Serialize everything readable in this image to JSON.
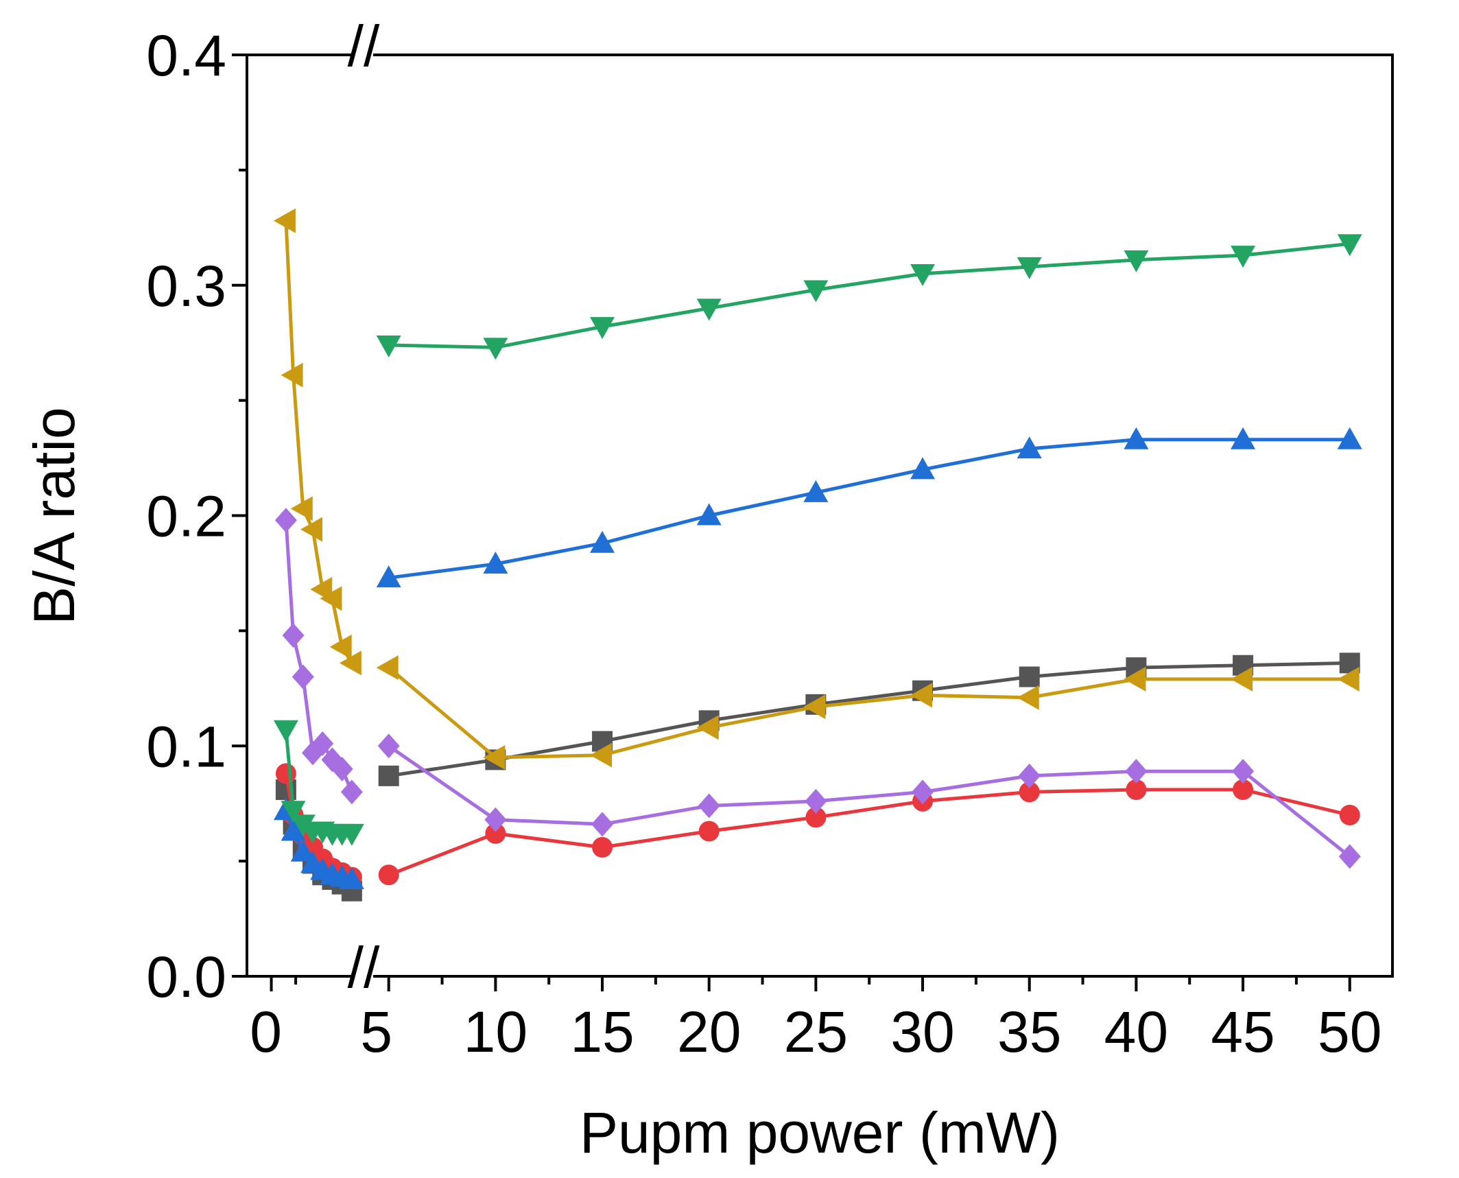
{
  "chart_data": {
    "type": "line",
    "title": "",
    "xlabel": "Pupm power (mW)",
    "ylabel": "B/A ratio",
    "ylim": [
      0,
      0.4
    ],
    "yticks": [
      0.0,
      0.1,
      0.2,
      0.3,
      0.4
    ],
    "ytick_labels": [
      "0.0",
      "0.1",
      "0.2",
      "0.3",
      "0.4"
    ],
    "low_segment": {
      "xlim": [
        -1,
        3.5
      ],
      "xticks": [
        0
      ],
      "xtick_labels": [
        "0"
      ]
    },
    "high_segment": {
      "xlim": [
        3.5,
        52
      ],
      "xticks": [
        5,
        10,
        15,
        20,
        25,
        30,
        35,
        40,
        45,
        50
      ],
      "xtick_labels": [
        "5",
        "10",
        "15",
        "20",
        "25",
        "30",
        "35",
        "40",
        "45",
        "50"
      ]
    },
    "axis_break": "//",
    "grid": false,
    "legend": "none",
    "series": [
      {
        "name": "series-black",
        "color": "#555555",
        "marker": "square",
        "low": {
          "x": [
            0.6,
            0.9,
            1.3,
            1.7,
            2.1,
            2.5,
            2.9,
            3.3
          ],
          "y": [
            0.081,
            0.066,
            0.056,
            0.049,
            0.044,
            0.042,
            0.04,
            0.037
          ]
        },
        "high": {
          "x": [
            5,
            10,
            15,
            20,
            25,
            30,
            35,
            40,
            45,
            50
          ],
          "y": [
            0.087,
            0.094,
            0.102,
            0.111,
            0.118,
            0.124,
            0.13,
            0.134,
            0.135,
            0.136
          ]
        }
      },
      {
        "name": "series-red",
        "color": "#e8383d",
        "marker": "circle",
        "low": {
          "x": [
            0.6,
            0.9,
            1.3,
            1.7,
            2.1,
            2.5,
            2.9,
            3.3
          ],
          "y": [
            0.088,
            0.07,
            0.061,
            0.056,
            0.051,
            0.047,
            0.045,
            0.043
          ]
        },
        "high": {
          "x": [
            5,
            10,
            15,
            20,
            25,
            30,
            35,
            40,
            45,
            50
          ],
          "y": [
            0.044,
            0.062,
            0.056,
            0.063,
            0.069,
            0.076,
            0.08,
            0.081,
            0.081,
            0.07
          ]
        }
      },
      {
        "name": "series-blue",
        "color": "#1f6fd6",
        "marker": "triangle-up",
        "low": {
          "x": [
            0.6,
            0.9,
            1.3,
            1.7,
            2.1,
            2.5,
            2.9,
            3.3
          ],
          "y": [
            0.072,
            0.063,
            0.054,
            0.049,
            0.046,
            0.044,
            0.043,
            0.042
          ]
        },
        "high": {
          "x": [
            5,
            10,
            15,
            20,
            25,
            30,
            35,
            40,
            45,
            50
          ],
          "y": [
            0.173,
            0.179,
            0.188,
            0.2,
            0.21,
            0.22,
            0.229,
            0.233,
            0.233,
            0.233
          ]
        }
      },
      {
        "name": "series-green",
        "color": "#23a463",
        "marker": "triangle-down",
        "low": {
          "x": [
            0.6,
            0.9,
            1.3,
            1.7,
            2.1,
            2.5,
            2.9,
            3.3
          ],
          "y": [
            0.107,
            0.072,
            0.066,
            0.063,
            0.063,
            0.062,
            0.062,
            0.062
          ]
        },
        "high": {
          "x": [
            5,
            10,
            15,
            20,
            25,
            30,
            35,
            40,
            45,
            50
          ],
          "y": [
            0.274,
            0.273,
            0.282,
            0.29,
            0.298,
            0.305,
            0.308,
            0.311,
            0.313,
            0.318
          ]
        }
      },
      {
        "name": "series-gold",
        "color": "#c99a12",
        "marker": "triangle-left",
        "low": {
          "x": [
            0.6,
            0.9,
            1.3,
            1.7,
            2.1,
            2.5,
            2.9,
            3.3
          ],
          "y": [
            0.328,
            0.261,
            0.203,
            0.194,
            0.168,
            0.164,
            0.143,
            0.136
          ]
        },
        "high": {
          "x": [
            5,
            10,
            15,
            20,
            25,
            30,
            35,
            40,
            45,
            50
          ],
          "y": [
            0.134,
            0.095,
            0.096,
            0.108,
            0.117,
            0.122,
            0.121,
            0.129,
            0.129,
            0.129
          ]
        }
      },
      {
        "name": "series-purple",
        "color": "#a66ee0",
        "marker": "diamond",
        "low": {
          "x": [
            0.6,
            0.9,
            1.3,
            1.7,
            2.1,
            2.5,
            2.9,
            3.3
          ],
          "y": [
            0.198,
            0.148,
            0.13,
            0.097,
            0.101,
            0.094,
            0.09,
            0.08
          ]
        },
        "high": {
          "x": [
            5,
            10,
            15,
            20,
            25,
            30,
            35,
            40,
            45,
            50
          ],
          "y": [
            0.1,
            0.068,
            0.066,
            0.074,
            0.076,
            0.08,
            0.087,
            0.089,
            0.089,
            0.052
          ]
        }
      }
    ]
  }
}
